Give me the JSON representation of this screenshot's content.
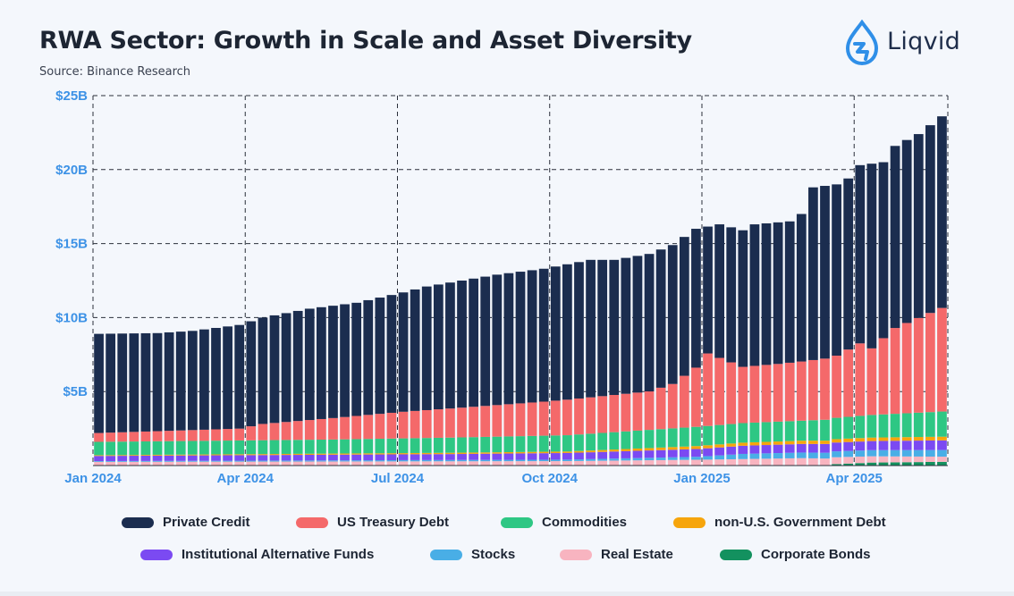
{
  "header": {
    "title": "RWA Sector: Growth in Scale and Asset Diversity",
    "source": "Source: Binance Research",
    "logo_text": "Liqvid"
  },
  "colors": {
    "Private Credit": "#1b2d4f",
    "US Treasury Debt": "#f4696a",
    "Commodities": "#2ec784",
    "non-U.S. Government Debt": "#f6a50c",
    "Institutional Alternative Funds": "#7b4af2",
    "Stocks": "#49aee6",
    "Real Estate": "#f8b4c0",
    "Corporate Bonds": "#13915f",
    "axis_label": "#3d92e6"
  },
  "chart_data": {
    "type": "bar",
    "stacked": true,
    "ylim": [
      0,
      25
    ],
    "yticks": [
      "$5B",
      "$10B",
      "$15B",
      "$20B",
      "$25B"
    ],
    "ytick_values": [
      5,
      10,
      15,
      20,
      25
    ],
    "xticks": [
      "Jan 2024",
      "Apr 2024",
      "Jul 2024",
      "Oct 2024",
      "Jan 2025",
      "Apr 2025"
    ],
    "xtick_weeks": [
      0,
      13,
      26,
      39,
      52,
      65
    ],
    "grid": true,
    "legend_position": "bottom",
    "n_weeks": 73,
    "total_anchors": [
      [
        0,
        8.9
      ],
      [
        5,
        8.95
      ],
      [
        8,
        9.1
      ],
      [
        12,
        9.5
      ],
      [
        14,
        10.0
      ],
      [
        16,
        10.3
      ],
      [
        18,
        10.6
      ],
      [
        22,
        11.0
      ],
      [
        26,
        11.7
      ],
      [
        28,
        12.1
      ],
      [
        34,
        12.9
      ],
      [
        38,
        13.3
      ],
      [
        40,
        13.6
      ],
      [
        42,
        13.9
      ],
      [
        44,
        13.9
      ],
      [
        47,
        14.3
      ],
      [
        49,
        14.9
      ],
      [
        51,
        16.0
      ],
      [
        53,
        16.3
      ],
      [
        55,
        15.9
      ],
      [
        56,
        16.3
      ],
      [
        59,
        16.5
      ],
      [
        60,
        17.0
      ],
      [
        61,
        18.8
      ],
      [
        63,
        19.0
      ],
      [
        64,
        19.4
      ],
      [
        65,
        20.3
      ],
      [
        67,
        20.5
      ],
      [
        68,
        21.6
      ],
      [
        70,
        22.4
      ],
      [
        72,
        23.6
      ]
    ],
    "series": [
      {
        "name": "Corporate Bonds",
        "anchors": [
          [
            0,
            0
          ],
          [
            62,
            0
          ],
          [
            63,
            0.1
          ],
          [
            66,
            0.2
          ],
          [
            72,
            0.25
          ]
        ]
      },
      {
        "name": "Real Estate",
        "anchors": [
          [
            0,
            0.25
          ],
          [
            40,
            0.3
          ],
          [
            52,
            0.4
          ],
          [
            60,
            0.5
          ],
          [
            72,
            0.35
          ]
        ]
      },
      {
        "name": "Stocks",
        "anchors": [
          [
            0,
            0.05
          ],
          [
            40,
            0.1
          ],
          [
            51,
            0.2
          ],
          [
            55,
            0.35
          ],
          [
            72,
            0.45
          ]
        ]
      },
      {
        "name": "Institutional Alternative Funds",
        "anchors": [
          [
            0,
            0.35
          ],
          [
            30,
            0.4
          ],
          [
            40,
            0.45
          ],
          [
            55,
            0.55
          ],
          [
            72,
            0.65
          ]
        ]
      },
      {
        "name": "non-U.S. Government Debt",
        "anchors": [
          [
            0,
            0.05
          ],
          [
            40,
            0.1
          ],
          [
            51,
            0.2
          ],
          [
            72,
            0.25
          ]
        ]
      },
      {
        "name": "Commodities",
        "anchors": [
          [
            0,
            0.9
          ],
          [
            20,
            0.95
          ],
          [
            40,
            1.1
          ],
          [
            51,
            1.3
          ],
          [
            60,
            1.35
          ],
          [
            65,
            1.5
          ],
          [
            72,
            1.7
          ]
        ]
      },
      {
        "name": "US Treasury Debt",
        "anchors": [
          [
            0,
            0.6
          ],
          [
            12,
            0.8
          ],
          [
            14,
            1.1
          ],
          [
            26,
            1.8
          ],
          [
            38,
            2.3
          ],
          [
            40,
            2.4
          ],
          [
            47,
            2.6
          ],
          [
            49,
            3.0
          ],
          [
            51,
            4.0
          ],
          [
            52,
            4.9
          ],
          [
            55,
            3.8
          ],
          [
            58,
            3.9
          ],
          [
            60,
            4.0
          ],
          [
            63,
            4.2
          ],
          [
            65,
            4.9
          ],
          [
            66,
            4.5
          ],
          [
            68,
            5.8
          ],
          [
            70,
            6.4
          ],
          [
            72,
            7.0
          ]
        ]
      },
      {
        "name": "Private Credit",
        "role": "remainder"
      }
    ]
  },
  "legend": {
    "items": [
      "Private Credit",
      "US Treasury Debt",
      "Commodities",
      "non-U.S. Government Debt",
      "Institutional Alternative Funds",
      "Stocks",
      "Real Estate",
      "Corporate Bonds"
    ]
  }
}
